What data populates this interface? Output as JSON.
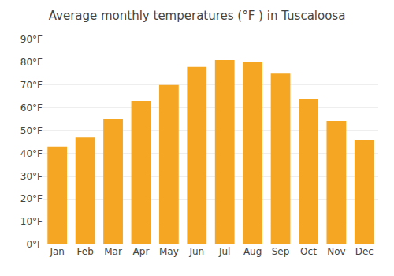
{
  "chart_data": {
    "type": "bar",
    "title": "Average monthly temperatures (°F ) in Tuscaloosa",
    "categories": [
      "Jan",
      "Feb",
      "Mar",
      "Apr",
      "May",
      "Jun",
      "Jul",
      "Aug",
      "Sep",
      "Oct",
      "Nov",
      "Dec"
    ],
    "values": [
      43,
      47,
      55,
      63,
      70,
      78,
      81,
      80,
      75,
      64,
      54,
      46
    ],
    "color": "#F5A623",
    "ylim": [
      0,
      90
    ],
    "yticks": [
      {
        "value": 0,
        "label": "0°F"
      },
      {
        "value": 10,
        "label": "10°F"
      },
      {
        "value": 20,
        "label": "20°F"
      },
      {
        "value": 30,
        "label": "30°F"
      },
      {
        "value": 40,
        "label": "40°F"
      },
      {
        "value": 50,
        "label": "50°F"
      },
      {
        "value": 60,
        "label": "60°F"
      },
      {
        "value": 70,
        "label": "70°F"
      },
      {
        "value": 80,
        "label": "80°F"
      },
      {
        "value": 90,
        "label": "90°F"
      }
    ],
    "grid": true
  }
}
